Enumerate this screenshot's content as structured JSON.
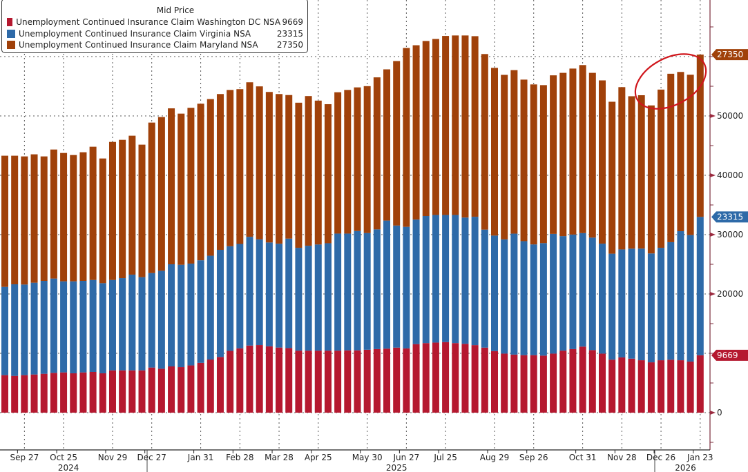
{
  "chart_data": {
    "type": "bar",
    "stacked": true,
    "categories": [
      "Sep 13 2024",
      "Sep 20 2024",
      "Sep 27 2024",
      "Oct 4 2024",
      "Oct 11 2024",
      "Oct 18 2024",
      "Oct 25 2024",
      "Nov 1 2024",
      "Nov 8 2024",
      "Nov 15 2024",
      "Nov 22 2024",
      "Nov 29 2024",
      "Dec 6 2024",
      "Dec 13 2024",
      "Dec 20 2024",
      "Dec 27 2024",
      "Jan 3 2025",
      "Jan 10 2025",
      "Jan 17 2025",
      "Jan 24 2025",
      "Jan 31 2025",
      "Feb 7 2025",
      "Feb 14 2025",
      "Feb 21 2025",
      "Feb 28 2025",
      "Mar 7 2025",
      "Mar 14 2025",
      "Mar 21 2025",
      "Mar 28 2025",
      "Apr 4 2025",
      "Apr 11 2025",
      "Apr 18 2025",
      "Apr 25 2025",
      "May 2 2025",
      "May 9 2025",
      "May 16 2025",
      "May 23 2025",
      "May 30 2025",
      "Jun 6 2025",
      "Jun 13 2025",
      "Jun 20 2025",
      "Jun 27 2025",
      "Jul 4 2025",
      "Jul 11 2025",
      "Jul 18 2025",
      "Jul 25 2025",
      "Aug 1 2025",
      "Aug 8 2025",
      "Aug 15 2025",
      "Aug 22 2025",
      "Aug 29 2025",
      "Sep 5 2025",
      "Sep 12 2025",
      "Sep 19 2025",
      "Sep 26 2025",
      "Oct 3 2025",
      "Oct 10 2025",
      "Oct 17 2025",
      "Oct 24 2025",
      "Oct 31 2025",
      "Nov 7 2025",
      "Nov 14 2025",
      "Nov 21 2025",
      "Nov 28 2025",
      "Dec 5 2025",
      "Dec 12 2025",
      "Dec 19 2025",
      "Dec 26 2025",
      "Jan 2 2026",
      "Jan 9 2026",
      "Jan 16 2026",
      "Jan 23 2026"
    ],
    "series": [
      {
        "name": "Unemployment Continued Insurance Claim Washington DC NSA",
        "last": "9669",
        "color": "#b5182f",
        "values": [
          6320,
          6200,
          6320,
          6430,
          6550,
          6710,
          6780,
          6630,
          6780,
          6860,
          6630,
          7130,
          7130,
          7130,
          7130,
          7600,
          7400,
          7790,
          7670,
          7960,
          8390,
          8950,
          9380,
          10410,
          10840,
          11310,
          11390,
          11180,
          10970,
          10880,
          10450,
          10450,
          10450,
          10450,
          10450,
          10500,
          10500,
          10600,
          10710,
          10790,
          10960,
          10830,
          11550,
          11720,
          11810,
          11890,
          11720,
          11600,
          11380,
          10960,
          10370,
          9950,
          9780,
          9690,
          9690,
          9610,
          9950,
          10450,
          10710,
          11130,
          10540,
          9950,
          8930,
          9310,
          9100,
          8830,
          8480,
          8830,
          8920,
          8830,
          8610,
          9669
        ]
      },
      {
        "name": "Unemployment Continued Insurance Claim Virginia NSA",
        "last": "23315",
        "color": "#2e6aa8",
        "values": [
          14880,
          15430,
          15270,
          15470,
          15660,
          15890,
          15350,
          15500,
          15430,
          15500,
          15190,
          15230,
          15540,
          16130,
          15700,
          15930,
          16510,
          17210,
          17250,
          17160,
          17290,
          17500,
          18060,
          17630,
          17590,
          18320,
          17810,
          17500,
          17500,
          18450,
          17330,
          17680,
          17890,
          18100,
          19730,
          19680,
          20110,
          19670,
          20180,
          21580,
          20570,
          20490,
          20990,
          21420,
          21500,
          21420,
          21590,
          21280,
          21630,
          19890,
          19470,
          19250,
          20390,
          19210,
          18660,
          18960,
          20180,
          19300,
          19300,
          19130,
          18960,
          18530,
          17860,
          18200,
          18540,
          18820,
          18350,
          18950,
          19810,
          21750,
          21320,
          23315
        ]
      },
      {
        "name": "Unemployment Continued Insurance Claim Maryland NSA",
        "last": "27350",
        "color": "#a0410a",
        "values": [
          22100,
          21670,
          21590,
          21630,
          20970,
          21740,
          21630,
          21280,
          21670,
          22450,
          21010,
          23260,
          23300,
          23410,
          22330,
          25350,
          25900,
          26280,
          25470,
          26250,
          26380,
          26390,
          26250,
          26340,
          26080,
          26040,
          25780,
          25360,
          25220,
          24190,
          24450,
          25220,
          24240,
          23430,
          23810,
          24200,
          24200,
          24750,
          25610,
          25480,
          27720,
          30130,
          29370,
          29490,
          29660,
          30170,
          30250,
          30680,
          30430,
          29580,
          28260,
          27720,
          27550,
          27220,
          26960,
          26620,
          26710,
          27510,
          27970,
          28310,
          27760,
          27510,
          25600,
          27340,
          25680,
          25840,
          24940,
          26660,
          28380,
          26830,
          27010,
          27350
        ]
      }
    ],
    "legend_title": "Mid Price",
    "legend_position": "top-left",
    "x_ticks": [
      {
        "label": "Sep 27",
        "index": 2
      },
      {
        "label": "Oct 25",
        "index": 6
      },
      {
        "label": "Nov 29",
        "index": 11
      },
      {
        "label": "Dec 27",
        "index": 15
      },
      {
        "label": "Jan 31",
        "index": 20
      },
      {
        "label": "Feb 28",
        "index": 24
      },
      {
        "label": "Mar 28",
        "index": 28
      },
      {
        "label": "Apr 25",
        "index": 32
      },
      {
        "label": "May 30",
        "index": 37
      },
      {
        "label": "Jun 27",
        "index": 41
      },
      {
        "label": "Jul 25",
        "index": 45
      },
      {
        "label": "Aug 29",
        "index": 50
      },
      {
        "label": "Sep 26",
        "index": 54
      },
      {
        "label": "Oct 31",
        "index": 59
      },
      {
        "label": "Nov 28",
        "index": 63
      },
      {
        "label": "Dec 26",
        "index": 67
      },
      {
        "label": "Jan 23",
        "index": 71
      }
    ],
    "years": [
      {
        "label": "2024",
        "index": 6.5
      },
      {
        "label": "2025",
        "index": 40
      },
      {
        "label": "2026",
        "index": 69.5
      }
    ],
    "y_ticks": [
      "0",
      "20000",
      "30000",
      "40000",
      "50000"
    ],
    "ylim": [
      -6000,
      69000
    ],
    "y_axis_side": "right",
    "grid": true,
    "annotation": "red ellipse around last 7 bars"
  }
}
